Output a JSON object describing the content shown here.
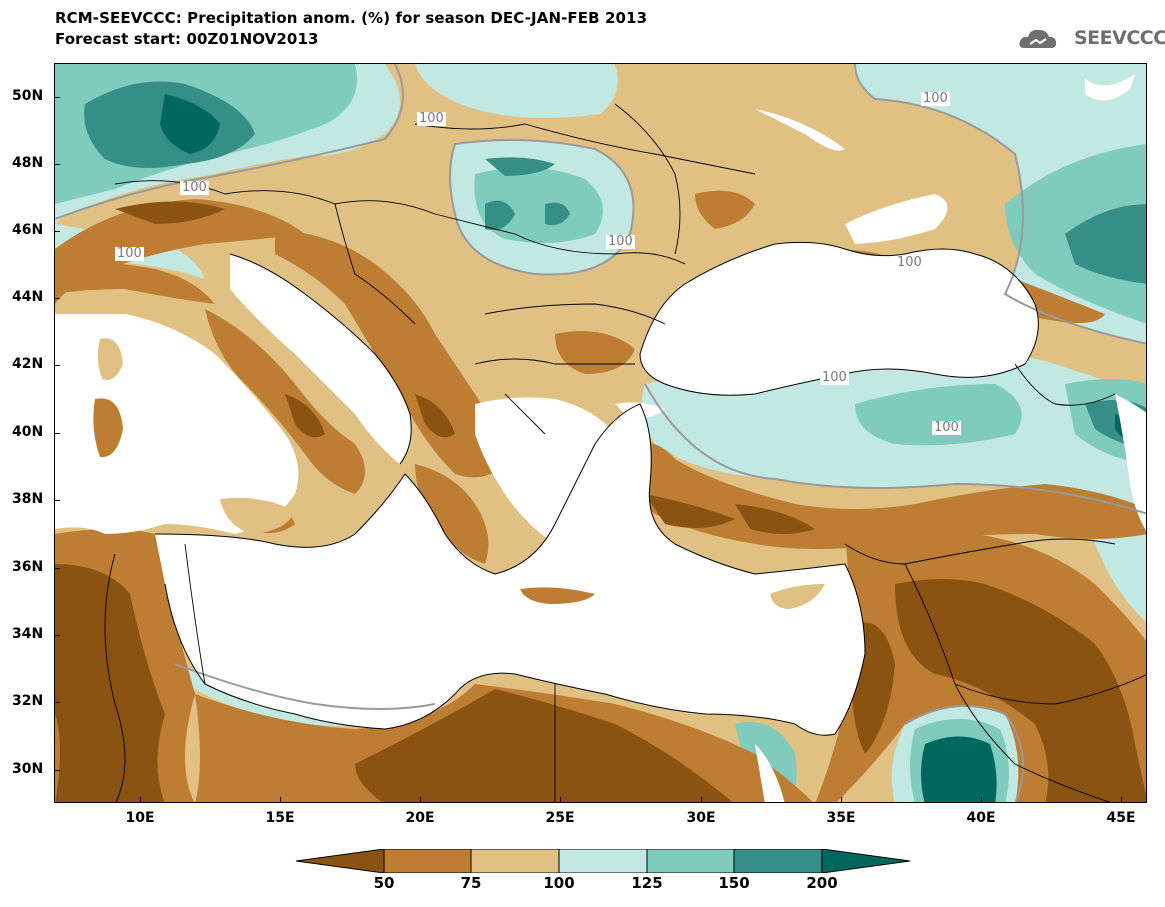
{
  "header": {
    "title_line1": "RCM-SEEVCCC: Precipitation anom. (%) for season DEC-JAN-FEB 2013",
    "title_line2": "Forecast start: 00Z01NOV2013",
    "logo_text": "SEEVCCC",
    "logo_icon": "cloud-icon"
  },
  "map": {
    "lat_labels": [
      "50N",
      "48N",
      "46N",
      "44N",
      "42N",
      "40N",
      "38N",
      "36N",
      "34N",
      "32N",
      "30N"
    ],
    "lon_labels": [
      "10E",
      "15E",
      "20E",
      "25E",
      "30E",
      "35E",
      "40E",
      "45E"
    ],
    "contour_labels": [
      "100",
      "100",
      "100",
      "100",
      "100",
      "100",
      "100",
      "100"
    ],
    "sea_color": "#ffffff",
    "border_color": "#000000"
  },
  "legend": {
    "labels": [
      "50",
      "75",
      "100",
      "125",
      "150",
      "200"
    ],
    "colors": [
      "#8b5312",
      "#bd7d33",
      "#e0c183",
      "#c2e8e2",
      "#7fcbbd",
      "#358f86",
      "#00675f"
    ]
  }
}
